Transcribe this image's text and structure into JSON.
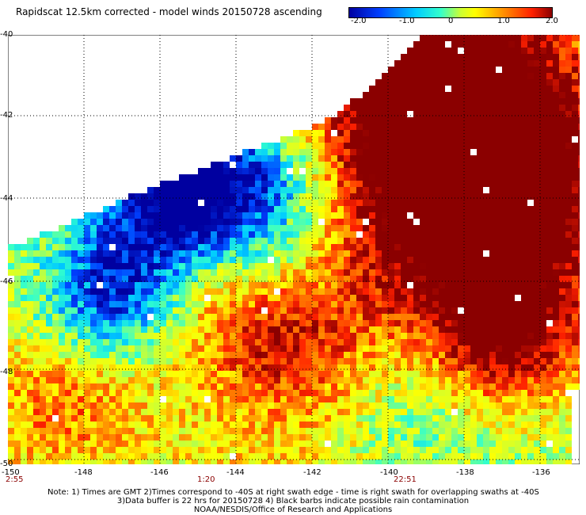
{
  "title": "Rapidscat 12.5km corrected - model winds 20150728 ascending",
  "colorbar": {
    "ticks": [
      "-2.0",
      "-1.0",
      "0",
      "1.0",
      "2.0"
    ],
    "colors": [
      "#0000a0",
      "#0040ff",
      "#00ccff",
      "#33ffcc",
      "#ccff33",
      "#ffff00",
      "#ff8000",
      "#ff2000",
      "#8b0000"
    ]
  },
  "lat_labels": [
    "-40",
    "-42",
    "-44",
    "-46",
    "-48",
    "-50"
  ],
  "lon_labels": [
    "-150",
    "-148",
    "-146",
    "-144",
    "-142",
    "-140",
    "-138",
    "-136"
  ],
  "times": [
    "2:55",
    "1:20",
    "22:51"
  ],
  "notes": {
    "line1": "Note: 1) Times are GMT 2)Times correspond to -40S at right swath edge - time is right swath for overlapping swaths at -40S",
    "line2": "3)Data buffer is 22 hrs for 20150728 4) Black barbs indicate possible rain contamination",
    "line3": "NOAA/NESDIS/Office of Research and Applications"
  }
}
